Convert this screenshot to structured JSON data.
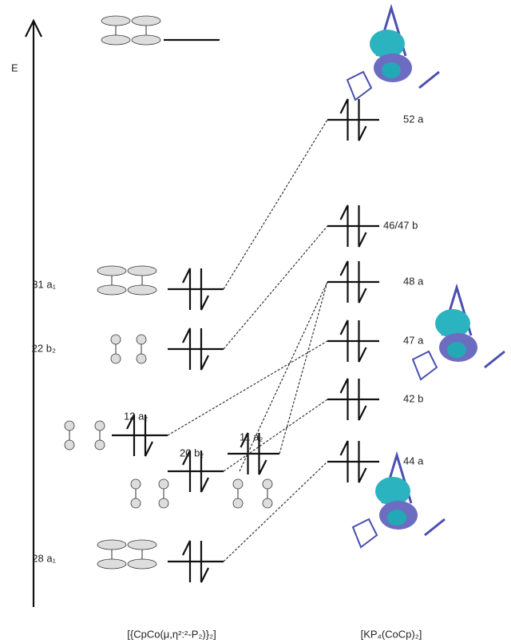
{
  "axis_label": "E",
  "left_labels": [
    "31 a₁",
    "22 b₂",
    "12 a₂",
    "20 b₂",
    "11 a₂",
    "28 a₁"
  ],
  "right_labels": [
    "52 a",
    "46/47 b",
    "48 a",
    "47 a",
    "42 b",
    "44 a"
  ],
  "footer": {
    "left": "[{CpCo(μ,η²:²-P₂)}₂]",
    "right": "[KP₄(CoCp)₂]"
  }
}
